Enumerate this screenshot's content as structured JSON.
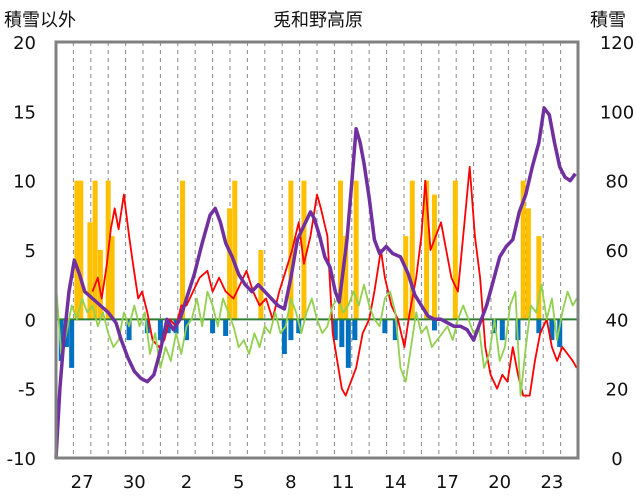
{
  "chart_data": {
    "type": "line",
    "title": "兎和野高原",
    "left_axis_label": "積雪以外",
    "right_axis_label": "積雪",
    "left_ylim": [
      -10,
      20
    ],
    "left_yticks": [
      -10,
      -5,
      0,
      5,
      10,
      15,
      20
    ],
    "right_ylim": [
      0,
      120
    ],
    "right_yticks": [
      0,
      20,
      40,
      60,
      80,
      100,
      120
    ],
    "x_tick_labels": [
      "27",
      "30",
      "2",
      "5",
      "8",
      "11",
      "14",
      "17",
      "20",
      "23"
    ],
    "x_range_days": [
      0,
      30
    ],
    "x_tick_days": [
      1.5,
      4.5,
      7.5,
      10.5,
      13.5,
      16.5,
      19.5,
      22.5,
      25.5,
      28.5
    ],
    "grid": "vertical dashed daily",
    "colors": {
      "snow_depth": "#7030a0",
      "temperature": "#ff0000",
      "secondary": "#92d050",
      "precipitation": "#ffc000",
      "negative_bars": "#0070c0",
      "frame": "#808080"
    },
    "series": [
      {
        "axis": "right",
        "color": "#7030a0",
        "points": [
          [
            0,
            0
          ],
          [
            0.3,
            20
          ],
          [
            0.6,
            34
          ],
          [
            1.0,
            48
          ],
          [
            1.4,
            57
          ],
          [
            1.8,
            53
          ],
          [
            2.2,
            48
          ],
          [
            2.8,
            46
          ],
          [
            3.4,
            44
          ],
          [
            4.0,
            42
          ],
          [
            4.6,
            39
          ],
          [
            5.0,
            34
          ],
          [
            5.5,
            29
          ],
          [
            6.0,
            25
          ],
          [
            6.5,
            23
          ],
          [
            7.0,
            22
          ],
          [
            7.5,
            24
          ],
          [
            8.0,
            31
          ],
          [
            8.5,
            40
          ],
          [
            9.0,
            37
          ],
          [
            9.5,
            40
          ],
          [
            10.0,
            46
          ],
          [
            10.6,
            53
          ],
          [
            11.2,
            62
          ],
          [
            11.8,
            70
          ],
          [
            12.2,
            72
          ],
          [
            12.6,
            68
          ],
          [
            13.0,
            62
          ],
          [
            13.5,
            58
          ],
          [
            14.0,
            53
          ],
          [
            14.5,
            50
          ],
          [
            15.0,
            48
          ],
          [
            15.5,
            50
          ],
          [
            16.0,
            48
          ],
          [
            16.5,
            46
          ],
          [
            17.0,
            44
          ],
          [
            17.5,
            43
          ],
          [
            18.0,
            52
          ],
          [
            18.5,
            63
          ],
          [
            19.0,
            67
          ],
          [
            19.5,
            71
          ],
          [
            19.8,
            69
          ],
          [
            20.2,
            64
          ],
          [
            20.6,
            58
          ],
          [
            21.0,
            55
          ],
          [
            21.4,
            48
          ],
          [
            21.7,
            45
          ],
          [
            22.3,
            63
          ],
          [
            22.7,
            81
          ],
          [
            23.0,
            95
          ],
          [
            23.3,
            91
          ],
          [
            23.6,
            85
          ],
          [
            24.0,
            75
          ],
          [
            24.4,
            63
          ],
          [
            24.8,
            59
          ],
          [
            25.3,
            61
          ],
          [
            25.8,
            59
          ],
          [
            26.4,
            58
          ],
          [
            27.0,
            53
          ],
          [
            27.5,
            47
          ],
          [
            28.0,
            44
          ],
          [
            28.5,
            41
          ],
          [
            29.0,
            40
          ],
          [
            29.5,
            40
          ],
          [
            30.0,
            39
          ],
          [
            30.5,
            38
          ],
          [
            31.0,
            38
          ],
          [
            31.5,
            37
          ],
          [
            32.0,
            34
          ],
          [
            32.5,
            39
          ],
          [
            33.0,
            44
          ],
          [
            33.5,
            51
          ],
          [
            34.0,
            58
          ],
          [
            34.5,
            61
          ],
          [
            35.0,
            63
          ],
          [
            35.5,
            71
          ],
          [
            36.0,
            76
          ],
          [
            36.5,
            84
          ],
          [
            37.0,
            91
          ],
          [
            37.4,
            101
          ],
          [
            37.8,
            99
          ],
          [
            38.2,
            91
          ],
          [
            38.6,
            84
          ],
          [
            39.0,
            81
          ],
          [
            39.4,
            80
          ],
          [
            39.8,
            82
          ]
        ]
      },
      {
        "axis": "left",
        "color": "#ff0000",
        "points": [
          [
            2.8,
            2.0
          ],
          [
            3.2,
            3.0
          ],
          [
            3.5,
            1.5
          ],
          [
            3.9,
            4.0
          ],
          [
            4.2,
            6.5
          ],
          [
            4.5,
            8.0
          ],
          [
            4.8,
            6.5
          ],
          [
            5.2,
            9.0
          ],
          [
            5.6,
            6.0
          ],
          [
            5.9,
            4.0
          ],
          [
            6.3,
            1.5
          ],
          [
            6.6,
            2.0
          ],
          [
            7.0,
            0.5
          ],
          [
            7.4,
            -1.5
          ],
          [
            7.9,
            -2.0
          ],
          [
            8.3,
            -1.5
          ],
          [
            8.7,
            0.0
          ],
          [
            9.2,
            -0.5
          ],
          [
            9.6,
            1.0
          ],
          [
            10.0,
            1.0
          ],
          [
            10.5,
            2.0
          ],
          [
            11.0,
            3.0
          ],
          [
            11.6,
            3.5
          ],
          [
            12.0,
            2.0
          ],
          [
            12.5,
            3.0
          ],
          [
            13.0,
            2.0
          ],
          [
            13.6,
            1.5
          ],
          [
            14.1,
            2.5
          ],
          [
            14.6,
            3.5
          ],
          [
            15.1,
            2.0
          ],
          [
            15.6,
            1.0
          ],
          [
            16.1,
            1.5
          ],
          [
            16.6,
            0.0
          ],
          [
            17.1,
            2.0
          ],
          [
            17.6,
            3.5
          ],
          [
            18.1,
            5.0
          ],
          [
            18.6,
            7.0
          ],
          [
            19.0,
            4.0
          ],
          [
            19.5,
            6.0
          ],
          [
            20.0,
            9.0
          ],
          [
            20.3,
            8.0
          ],
          [
            20.8,
            6.0
          ],
          [
            21.2,
            -1.0
          ],
          [
            21.9,
            -5.0
          ],
          [
            22.2,
            -5.5
          ],
          [
            22.6,
            -4.5
          ],
          [
            23.0,
            -3.5
          ],
          [
            23.5,
            -1.0
          ],
          [
            24.0,
            0.0
          ],
          [
            24.4,
            2.0
          ],
          [
            24.9,
            5.0
          ],
          [
            25.2,
            3.0
          ],
          [
            25.7,
            1.0
          ],
          [
            26.2,
            0.0
          ],
          [
            26.7,
            -2.0
          ],
          [
            27.1,
            0.5
          ],
          [
            27.6,
            3.0
          ],
          [
            28.0,
            6.0
          ],
          [
            28.3,
            10.0
          ],
          [
            28.7,
            5.0
          ],
          [
            29.1,
            6.0
          ],
          [
            29.5,
            7.0
          ],
          [
            29.9,
            5.0
          ],
          [
            30.3,
            3.0
          ],
          [
            30.8,
            2.0
          ],
          [
            31.3,
            7.0
          ],
          [
            31.7,
            11.0
          ],
          [
            32.1,
            6.0
          ],
          [
            32.5,
            3.0
          ],
          [
            32.9,
            -2.0
          ],
          [
            33.3,
            -4.0
          ],
          [
            33.8,
            -5.0
          ],
          [
            34.2,
            -4.0
          ],
          [
            34.6,
            -4.5
          ],
          [
            35.0,
            -2.0
          ],
          [
            35.4,
            -4.0
          ],
          [
            35.8,
            -5.5
          ],
          [
            36.3,
            -5.5
          ],
          [
            36.7,
            -3.0
          ],
          [
            37.1,
            -1.0
          ],
          [
            37.6,
            0.0
          ],
          [
            38.0,
            -2.0
          ],
          [
            38.4,
            -3.0
          ],
          [
            38.8,
            -2.0
          ],
          [
            39.2,
            -2.5
          ],
          [
            39.6,
            -3.0
          ],
          [
            39.9,
            -3.5
          ]
        ]
      },
      {
        "axis": "left",
        "color": "#92d050",
        "points": [
          [
            0,
            2.5
          ],
          [
            0.4,
            -2.5
          ],
          [
            0.8,
            -1.0
          ],
          [
            1.2,
            1.0
          ],
          [
            1.6,
            0.0
          ],
          [
            2.0,
            1.5
          ],
          [
            2.4,
            0.5
          ],
          [
            2.8,
            1.0
          ],
          [
            3.2,
            -0.5
          ],
          [
            3.6,
            0.5
          ],
          [
            4.0,
            -1.0
          ],
          [
            4.4,
            -2.0
          ],
          [
            4.8,
            -1.5
          ],
          [
            5.2,
            0.5
          ],
          [
            5.6,
            -0.5
          ],
          [
            6.0,
            1.0
          ],
          [
            6.4,
            -0.5
          ],
          [
            6.8,
            0.5
          ],
          [
            7.2,
            -2.5
          ],
          [
            7.6,
            -1.0
          ],
          [
            8.0,
            -3.5
          ],
          [
            8.4,
            -2.0
          ],
          [
            8.8,
            -3.0
          ],
          [
            9.2,
            -1.0
          ],
          [
            9.6,
            -2.5
          ],
          [
            10.0,
            -0.5
          ],
          [
            10.4,
            0.0
          ],
          [
            10.8,
            1.5
          ],
          [
            11.2,
            -0.5
          ],
          [
            11.6,
            2.0
          ],
          [
            12.0,
            1.0
          ],
          [
            12.4,
            -0.5
          ],
          [
            12.8,
            1.5
          ],
          [
            13.2,
            0.5
          ],
          [
            13.6,
            -0.5
          ],
          [
            14.0,
            -2.0
          ],
          [
            14.4,
            -1.5
          ],
          [
            14.8,
            -2.5
          ],
          [
            15.2,
            -1.0
          ],
          [
            15.6,
            -2.0
          ],
          [
            16.0,
            -0.5
          ],
          [
            16.4,
            -1.0
          ],
          [
            16.8,
            0.5
          ],
          [
            17.2,
            -1.0
          ],
          [
            17.6,
            -0.5
          ],
          [
            18.0,
            1.5
          ],
          [
            18.4,
            0.5
          ],
          [
            18.8,
            -1.0
          ],
          [
            19.2,
            0.5
          ],
          [
            19.6,
            1.5
          ],
          [
            20.0,
            0.0
          ],
          [
            20.4,
            -1.0
          ],
          [
            20.8,
            -0.5
          ],
          [
            21.2,
            1.0
          ],
          [
            21.6,
            1.5
          ],
          [
            22.0,
            0.5
          ],
          [
            22.4,
            1.0
          ],
          [
            22.8,
            2.0
          ],
          [
            23.2,
            1.0
          ],
          [
            23.6,
            2.5
          ],
          [
            24.0,
            1.0
          ],
          [
            24.4,
            0.0
          ],
          [
            24.8,
            -0.5
          ],
          [
            25.2,
            1.5
          ],
          [
            25.6,
            2.0
          ],
          [
            26.0,
            0.5
          ],
          [
            26.4,
            -3.5
          ],
          [
            26.8,
            -4.5
          ],
          [
            27.2,
            -2.0
          ],
          [
            27.6,
            0.5
          ],
          [
            28.0,
            -1.0
          ],
          [
            28.4,
            -0.5
          ],
          [
            28.8,
            -2.0
          ],
          [
            29.2,
            -1.5
          ],
          [
            29.6,
            -1.0
          ],
          [
            30.0,
            -0.5
          ],
          [
            30.4,
            -1.5
          ],
          [
            30.8,
            0.0
          ],
          [
            31.2,
            1.0
          ],
          [
            31.6,
            0.0
          ],
          [
            32.0,
            -1.0
          ],
          [
            32.4,
            -0.5
          ],
          [
            32.8,
            -3.5
          ],
          [
            33.2,
            -2.5
          ],
          [
            33.6,
            0.0
          ],
          [
            34.0,
            -3.0
          ],
          [
            34.4,
            -2.0
          ],
          [
            34.8,
            1.0
          ],
          [
            35.2,
            2.0
          ],
          [
            35.6,
            -5.5
          ],
          [
            36.0,
            -2.0
          ],
          [
            36.4,
            1.0
          ],
          [
            36.8,
            0.5
          ],
          [
            37.2,
            2.5
          ],
          [
            37.6,
            0.0
          ],
          [
            38.0,
            1.5
          ],
          [
            38.4,
            -1.5
          ],
          [
            38.8,
            0.5
          ],
          [
            39.2,
            2.0
          ],
          [
            39.6,
            1.0
          ],
          [
            39.9,
            1.5
          ]
        ]
      }
    ],
    "precipitation_bars": [
      [
        1.6,
        10
      ],
      [
        1.9,
        10
      ],
      [
        2.6,
        7
      ],
      [
        3.0,
        10
      ],
      [
        3.4,
        5
      ],
      [
        4.0,
        10
      ],
      [
        4.3,
        6
      ],
      [
        9.7,
        10
      ],
      [
        13.3,
        8
      ],
      [
        13.7,
        10
      ],
      [
        15.7,
        5
      ],
      [
        18.0,
        10
      ],
      [
        19.0,
        10
      ],
      [
        21.8,
        10
      ],
      [
        22.2,
        6
      ],
      [
        23.0,
        10
      ],
      [
        26.8,
        6
      ],
      [
        27.3,
        10
      ],
      [
        28.4,
        10
      ],
      [
        29.0,
        9
      ],
      [
        30.6,
        10
      ],
      [
        35.8,
        10
      ],
      [
        36.2,
        8
      ],
      [
        37.0,
        6
      ]
    ],
    "negative_bars": [
      [
        0.4,
        -3
      ],
      [
        0.8,
        -2
      ],
      [
        1.2,
        -3.5
      ],
      [
        5.6,
        -1.5
      ],
      [
        7.0,
        -1
      ],
      [
        8.0,
        -1.5
      ],
      [
        8.6,
        -1
      ],
      [
        9.2,
        -1
      ],
      [
        10.0,
        -1.5
      ],
      [
        12.0,
        -1
      ],
      [
        13.0,
        -1.2
      ],
      [
        17.5,
        -2.5
      ],
      [
        18.0,
        -1.5
      ],
      [
        18.6,
        -1
      ],
      [
        21.4,
        -1.5
      ],
      [
        21.9,
        -2
      ],
      [
        22.4,
        -3.5
      ],
      [
        22.9,
        -1.5
      ],
      [
        25.2,
        -1
      ],
      [
        26.0,
        -1.5
      ],
      [
        29.0,
        -0.8
      ],
      [
        33.6,
        -1
      ],
      [
        34.2,
        -1.5
      ],
      [
        35.4,
        -1.5
      ],
      [
        37.0,
        -1
      ],
      [
        38.0,
        -1.5
      ],
      [
        38.6,
        -2
      ]
    ]
  }
}
